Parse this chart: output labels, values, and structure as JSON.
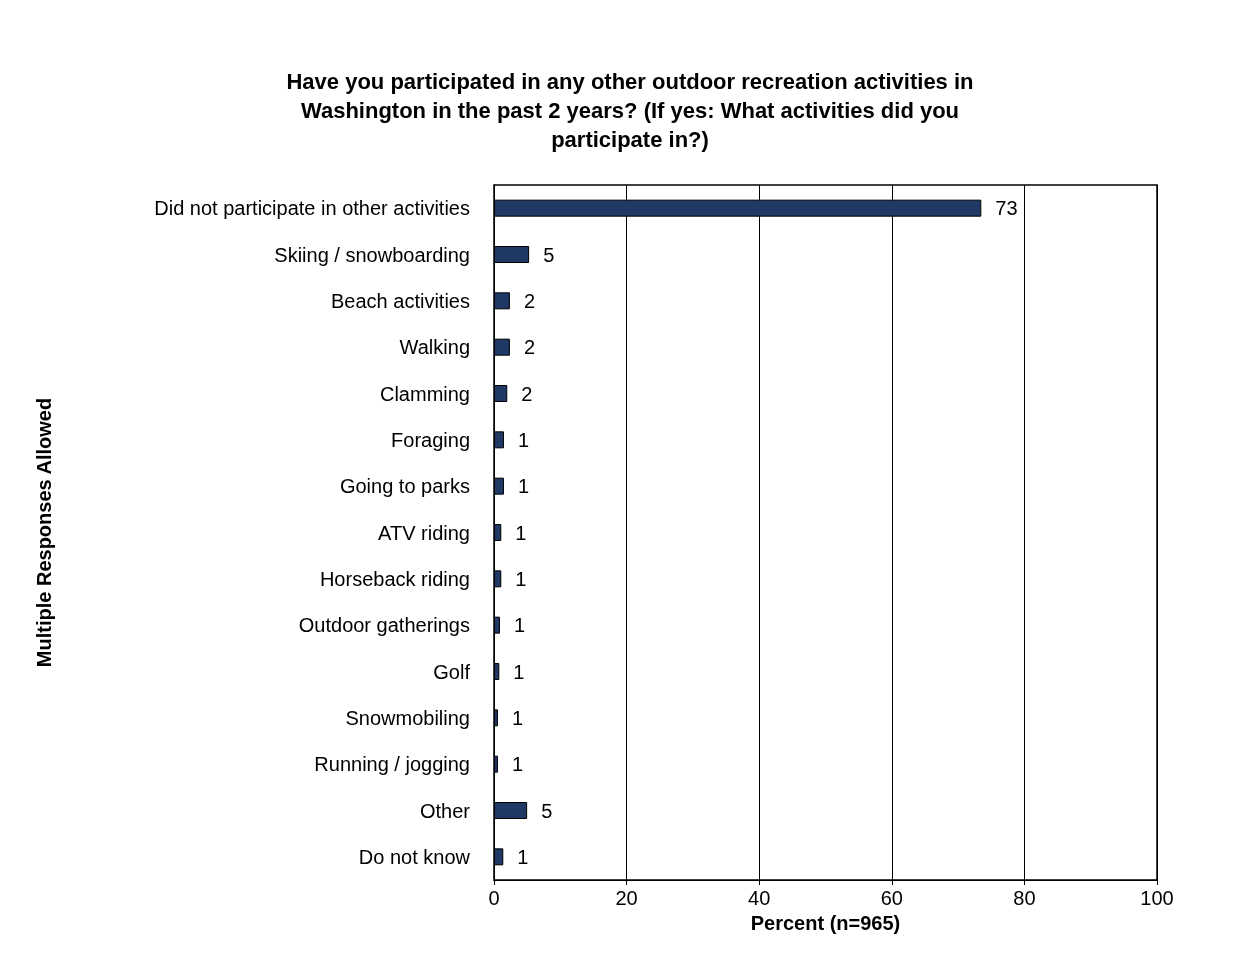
{
  "chart_data": {
    "type": "bar",
    "orientation": "horizontal",
    "title": "Have you participated in any other outdoor recreation activities in\nWashington in the past 2 years? (If yes: What activities did you\nparticipate in?)",
    "xlabel": "Percent (n=965)",
    "ylabel": "Multiple Responses Allowed",
    "categories": [
      "Did not participate in other activities",
      "Skiing / snowboarding",
      "Beach activities",
      "Walking",
      "Clamming",
      "Foraging",
      "Going to parks",
      "ATV riding",
      "Horseback riding",
      "Outdoor gatherings",
      "Golf",
      "Snowmobiling",
      "Running / jogging",
      "Other",
      "Do not know"
    ],
    "values": [
      73.5,
      5.3,
      2.4,
      2.4,
      2.0,
      1.5,
      1.5,
      1.1,
      1.1,
      0.9,
      0.8,
      0.6,
      0.6,
      5.0,
      1.4
    ],
    "value_labels": [
      "73",
      "5",
      "2",
      "2",
      "2",
      "1",
      "1",
      "1",
      "1",
      "1",
      "1",
      "1",
      "1",
      "5",
      "1"
    ],
    "color": "#1f3864",
    "xlim": [
      0,
      100
    ],
    "xticks": [
      0,
      20,
      40,
      60,
      80,
      100
    ],
    "grid": "x"
  }
}
